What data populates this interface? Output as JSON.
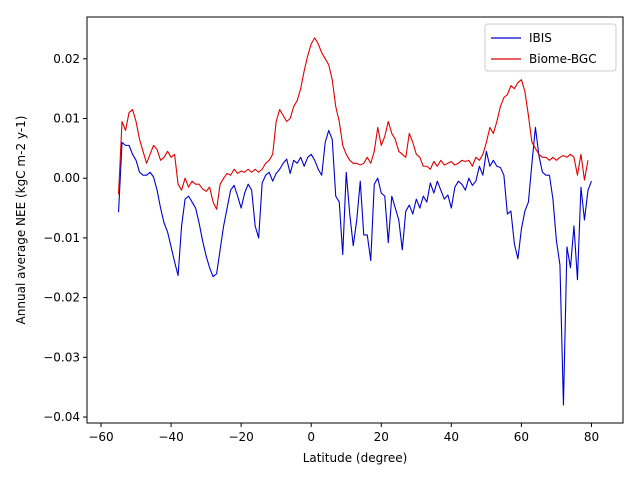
{
  "chart_data": {
    "type": "line",
    "title": "",
    "xlabel": "Latitude (degree)",
    "ylabel": "Annual average NEE (kgC m-2 y-1)",
    "xlim": [
      -64,
      89
    ],
    "ylim": [
      -0.041,
      0.027
    ],
    "xticks": [
      -60,
      -40,
      -20,
      0,
      20,
      40,
      60,
      80
    ],
    "xtick_labels": [
      "−60",
      "−40",
      "−20",
      "0",
      "20",
      "40",
      "60",
      "80"
    ],
    "yticks": [
      -0.04,
      -0.03,
      -0.02,
      -0.01,
      0.0,
      0.01,
      0.02
    ],
    "ytick_labels": [
      "−0.04",
      "−0.03",
      "−0.02",
      "−0.01",
      "0.00",
      "0.01",
      "0.02"
    ],
    "grid": false,
    "legend_position": "top-right",
    "series": [
      {
        "name": "IBIS",
        "color": "#0000cc",
        "x": [
          -55,
          -54,
          -53,
          -52,
          -51,
          -50,
          -49,
          -48,
          -47,
          -46,
          -45,
          -44,
          -43,
          -42,
          -41,
          -40,
          -39,
          -38,
          -37,
          -36,
          -35,
          -34,
          -33,
          -32,
          -31,
          -30,
          -29,
          -28,
          -27,
          -26,
          -25,
          -24,
          -23,
          -22,
          -21,
          -20,
          -19,
          -18,
          -17,
          -16,
          -15,
          -14,
          -13,
          -12,
          -11,
          -10,
          -9,
          -8,
          -7,
          -6,
          -5,
          -4,
          -3,
          -2,
          -1,
          0,
          1,
          2,
          3,
          4,
          5,
          6,
          7,
          8,
          9,
          10,
          11,
          12,
          13,
          14,
          15,
          16,
          17,
          18,
          19,
          20,
          21,
          22,
          23,
          24,
          25,
          26,
          27,
          28,
          29,
          30,
          31,
          32,
          33,
          34,
          35,
          36,
          37,
          38,
          39,
          40,
          41,
          42,
          43,
          44,
          45,
          46,
          47,
          48,
          49,
          50,
          51,
          52,
          53,
          54,
          55,
          56,
          57,
          58,
          59,
          60,
          61,
          62,
          63,
          64,
          65,
          66,
          67,
          68,
          69,
          70,
          71,
          72,
          73,
          74,
          75,
          76,
          77,
          78,
          79,
          80
        ],
        "y": [
          -0.0057,
          0.006,
          0.0055,
          0.0055,
          0.004,
          0.003,
          0.001,
          0.0005,
          0.0005,
          0.001,
          0.0002,
          -0.002,
          -0.005,
          -0.0075,
          -0.009,
          -0.0115,
          -0.014,
          -0.0163,
          -0.008,
          -0.0035,
          -0.003,
          -0.004,
          -0.005,
          -0.0075,
          -0.0105,
          -0.013,
          -0.015,
          -0.0165,
          -0.016,
          -0.012,
          -0.008,
          -0.005,
          -0.002,
          -0.0012,
          -0.003,
          -0.005,
          -0.0025,
          -0.001,
          -0.002,
          -0.008,
          -0.01,
          -0.0008,
          0.0005,
          0.001,
          -0.0005,
          0.0008,
          0.0015,
          0.0025,
          0.0032,
          0.0008,
          0.003,
          0.0025,
          0.0035,
          0.002,
          0.0035,
          0.004,
          0.003,
          0.0015,
          0.0005,
          0.006,
          0.008,
          0.0065,
          -0.003,
          -0.004,
          -0.0128,
          0.001,
          -0.006,
          -0.0113,
          -0.007,
          -0.0005,
          -0.0095,
          -0.0095,
          -0.0138,
          -0.001,
          0.0,
          -0.0025,
          -0.003,
          -0.0108,
          -0.003,
          -0.005,
          -0.007,
          -0.012,
          -0.0055,
          -0.0045,
          -0.006,
          -0.0035,
          -0.005,
          -0.003,
          -0.004,
          -0.0008,
          -0.0025,
          -0.0005,
          -0.002,
          -0.0035,
          -0.0028,
          -0.005,
          -0.0015,
          -0.0005,
          -0.001,
          -0.002,
          0.0,
          -0.0012,
          -0.0005,
          0.002,
          0.0005,
          0.0045,
          0.002,
          0.003,
          0.002,
          0.0018,
          0.0005,
          -0.006,
          -0.0055,
          -0.011,
          -0.0135,
          -0.0085,
          -0.0055,
          -0.004,
          0.0025,
          0.0085,
          0.0038,
          0.001,
          0.0005,
          0.0005,
          -0.0035,
          -0.0105,
          -0.0145,
          -0.038,
          -0.0115,
          -0.015,
          -0.008,
          -0.017,
          -0.0015,
          -0.007,
          -0.002,
          -0.0005
        ]
      },
      {
        "name": "Biome-BGC",
        "color": "#dd0000",
        "x": [
          -55,
          -54,
          -53,
          -52,
          -51,
          -50,
          -49,
          -48,
          -47,
          -46,
          -45,
          -44,
          -43,
          -42,
          -41,
          -40,
          -39,
          -38,
          -37,
          -36,
          -35,
          -34,
          -33,
          -32,
          -31,
          -30,
          -29,
          -28,
          -27,
          -26,
          -25,
          -24,
          -23,
          -22,
          -21,
          -20,
          -19,
          -18,
          -17,
          -16,
          -15,
          -14,
          -13,
          -12,
          -11,
          -10,
          -9,
          -8,
          -7,
          -6,
          -5,
          -4,
          -3,
          -2,
          -1,
          0,
          1,
          2,
          3,
          4,
          5,
          6,
          7,
          8,
          9,
          10,
          11,
          12,
          13,
          14,
          15,
          16,
          17,
          18,
          19,
          20,
          21,
          22,
          23,
          24,
          25,
          26,
          27,
          28,
          29,
          30,
          31,
          32,
          33,
          34,
          35,
          36,
          37,
          38,
          39,
          40,
          41,
          42,
          43,
          44,
          45,
          46,
          47,
          48,
          49,
          50,
          51,
          52,
          53,
          54,
          55,
          56,
          57,
          58,
          59,
          60,
          61,
          62,
          63,
          64,
          65,
          66,
          67,
          68,
          69,
          70,
          71,
          72,
          73,
          74,
          75,
          76,
          77,
          78,
          79
        ],
        "y": [
          -0.0027,
          0.0095,
          0.008,
          0.011,
          0.0115,
          0.0095,
          0.0065,
          0.0045,
          0.0025,
          0.004,
          0.0055,
          0.0048,
          0.003,
          0.0035,
          0.0045,
          0.0035,
          0.004,
          -0.001,
          -0.002,
          0.0,
          -0.0015,
          -0.0005,
          -0.001,
          -0.001,
          -0.0018,
          -0.0022,
          -0.0015,
          -0.004,
          -0.0052,
          -0.001,
          0.0,
          0.0008,
          0.0005,
          0.0015,
          0.0008,
          0.0012,
          0.001,
          0.0015,
          0.001,
          0.0015,
          0.001,
          0.0015,
          0.0025,
          0.003,
          0.004,
          0.0095,
          0.0115,
          0.0105,
          0.0095,
          0.01,
          0.012,
          0.013,
          0.015,
          0.018,
          0.0205,
          0.0225,
          0.0235,
          0.0225,
          0.021,
          0.02,
          0.019,
          0.0165,
          0.012,
          0.0095,
          0.0055,
          0.004,
          0.003,
          0.0025,
          0.0025,
          0.0022,
          0.0025,
          0.0035,
          0.0025,
          0.0045,
          0.0085,
          0.0055,
          0.007,
          0.0095,
          0.0075,
          0.0065,
          0.0045,
          0.004,
          0.0035,
          0.0075,
          0.006,
          0.004,
          0.0035,
          0.002,
          0.002,
          0.0015,
          0.0028,
          0.002,
          0.003,
          0.0022,
          0.0025,
          0.0028,
          0.0022,
          0.0025,
          0.003,
          0.0028,
          0.003,
          0.002,
          0.0035,
          0.003,
          0.004,
          0.006,
          0.0085,
          0.0075,
          0.0095,
          0.012,
          0.0135,
          0.014,
          0.0155,
          0.015,
          0.016,
          0.0165,
          0.0145,
          0.0105,
          0.006,
          0.005,
          0.004,
          0.0035,
          0.0035,
          0.003,
          0.0035,
          0.003,
          0.0035,
          0.0038,
          0.0035,
          0.004,
          0.0035,
          0.0005,
          0.004,
          -0.0003,
          0.003
        ]
      }
    ]
  }
}
